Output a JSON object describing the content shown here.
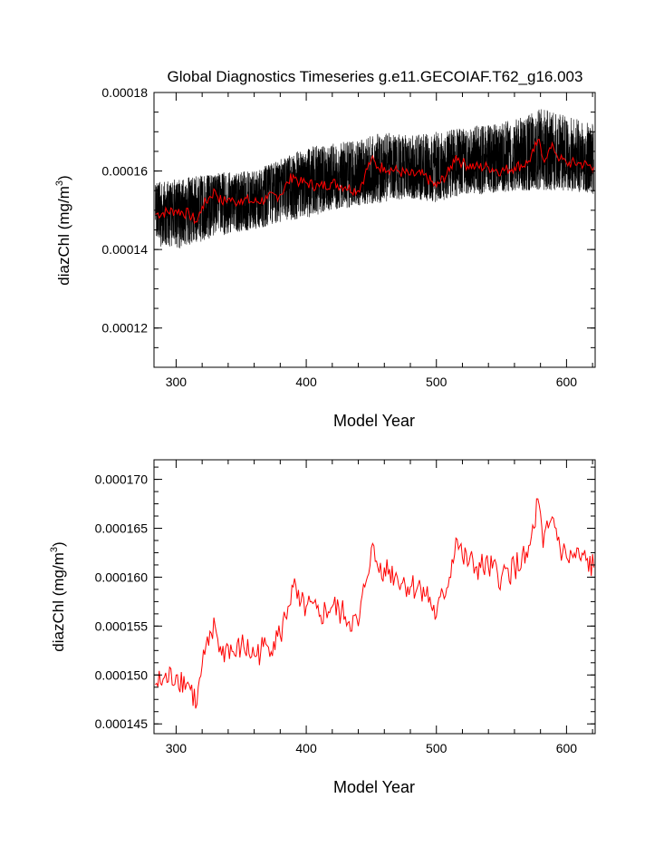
{
  "title": "Global Diagnostics Timeseries g.e11.GECOIAF.T62_g16.003",
  "colors": {
    "monthly": "#000000",
    "annual": "#ff0000",
    "axis": "#000000"
  },
  "chart_data": [
    {
      "type": "line",
      "name": "monthly-and-annual-timeseries",
      "title": "Global Diagnostics Timeseries g.e11.GECOIAF.T62_g16.003",
      "xlabel": "Model Year",
      "ylabel": "diazChl (mg/m^3)",
      "ylabel_main": "diazChl (mg/m",
      "ylabel_sup": "3",
      "ylabel_close": ")",
      "xlim": [
        283,
        622
      ],
      "ylim": [
        0.00011,
        0.00018
      ],
      "xticks": [
        300,
        400,
        500,
        600
      ],
      "xtick_labels": [
        "300",
        "400",
        "500",
        "600"
      ],
      "yticks": [
        0.00012,
        0.00014,
        0.00016,
        0.00018
      ],
      "ytick_labels": [
        "0.00012",
        "0.00014",
        "0.00016",
        "0.00018"
      ],
      "series": [
        {
          "name": "monthly",
          "color": "#000000",
          "resolution": "monthly",
          "trend_x": [
            284,
            300,
            320,
            340,
            360,
            380,
            400,
            420,
            440,
            460,
            480,
            500,
            520,
            540,
            560,
            580,
            600,
            621
          ],
          "trend_y": [
            0.00015,
            0.00015,
            0.000152,
            0.000152,
            0.000153,
            0.000156,
            0.000157,
            0.000157,
            0.000158,
            0.00016,
            0.00016,
            0.000159,
            0.000161,
            0.000161,
            0.000161,
            0.000163,
            0.000162,
            0.000162
          ],
          "envelope_min": [
            0.000141,
            0.00014,
            0.000142,
            0.000144,
            0.000145,
            0.000147,
            0.000148,
            0.00015,
            0.000151,
            0.000152,
            0.000153,
            0.000152,
            0.000154,
            0.000154,
            0.000155,
            0.000155,
            0.000155,
            0.000154
          ],
          "envelope_max": [
            0.000157,
            0.000158,
            0.000159,
            0.00016,
            0.00016,
            0.000163,
            0.000166,
            0.000167,
            0.000168,
            0.00017,
            0.000169,
            0.00017,
            0.000171,
            0.000172,
            0.000173,
            0.000176,
            0.000174,
            0.000172
          ]
        },
        {
          "name": "annual",
          "color": "#ff0000",
          "source": "annual_series"
        }
      ]
    },
    {
      "type": "line",
      "name": "annual-timeseries",
      "xlabel": "Model Year",
      "ylabel": "diazChl (mg/m^3)",
      "ylabel_main": "diazChl (mg/m",
      "ylabel_sup": "3",
      "ylabel_close": ")",
      "xlim": [
        283,
        622
      ],
      "ylim": [
        0.000144,
        0.000172
      ],
      "xticks": [
        300,
        400,
        500,
        600
      ],
      "xtick_labels": [
        "300",
        "400",
        "500",
        "600"
      ],
      "yticks": [
        0.000145,
        0.00015,
        0.000155,
        0.00016,
        0.000165,
        0.00017
      ],
      "ytick_labels": [
        "0.000145",
        "0.000150",
        "0.000155",
        "0.000160",
        "0.000165",
        "0.000170"
      ],
      "series": [
        {
          "name": "annual",
          "color": "#ff0000",
          "source": "annual_series"
        }
      ]
    }
  ],
  "annual_series": {
    "x": [
      284,
      300,
      310,
      316,
      320,
      325,
      330,
      335,
      340,
      345,
      350,
      360,
      370,
      380,
      386,
      390,
      395,
      400,
      410,
      420,
      430,
      440,
      445,
      450,
      455,
      460,
      470,
      480,
      490,
      500,
      510,
      515,
      520,
      530,
      540,
      550,
      560,
      570,
      575,
      578,
      582,
      586,
      590,
      595,
      600,
      610,
      621
    ],
    "y": [
      0.000149,
      0.00015,
      0.000149,
      0.000147,
      0.000151,
      0.000153,
      0.000155,
      0.000152,
      0.000153,
      0.000152,
      0.000153,
      0.000152,
      0.000153,
      0.000154,
      0.000157,
      0.000159,
      0.000157,
      0.000157,
      0.000156,
      0.000157,
      0.000156,
      0.000155,
      0.000159,
      0.000163,
      0.000161,
      0.000161,
      0.00016,
      0.000159,
      0.000159,
      0.000156,
      0.00016,
      0.000164,
      0.000162,
      0.000161,
      0.000161,
      0.00016,
      0.000161,
      0.000162,
      0.000165,
      0.000168,
      0.000163,
      0.000165,
      0.000166,
      0.000163,
      0.000162,
      0.000162,
      0.000161
    ]
  }
}
